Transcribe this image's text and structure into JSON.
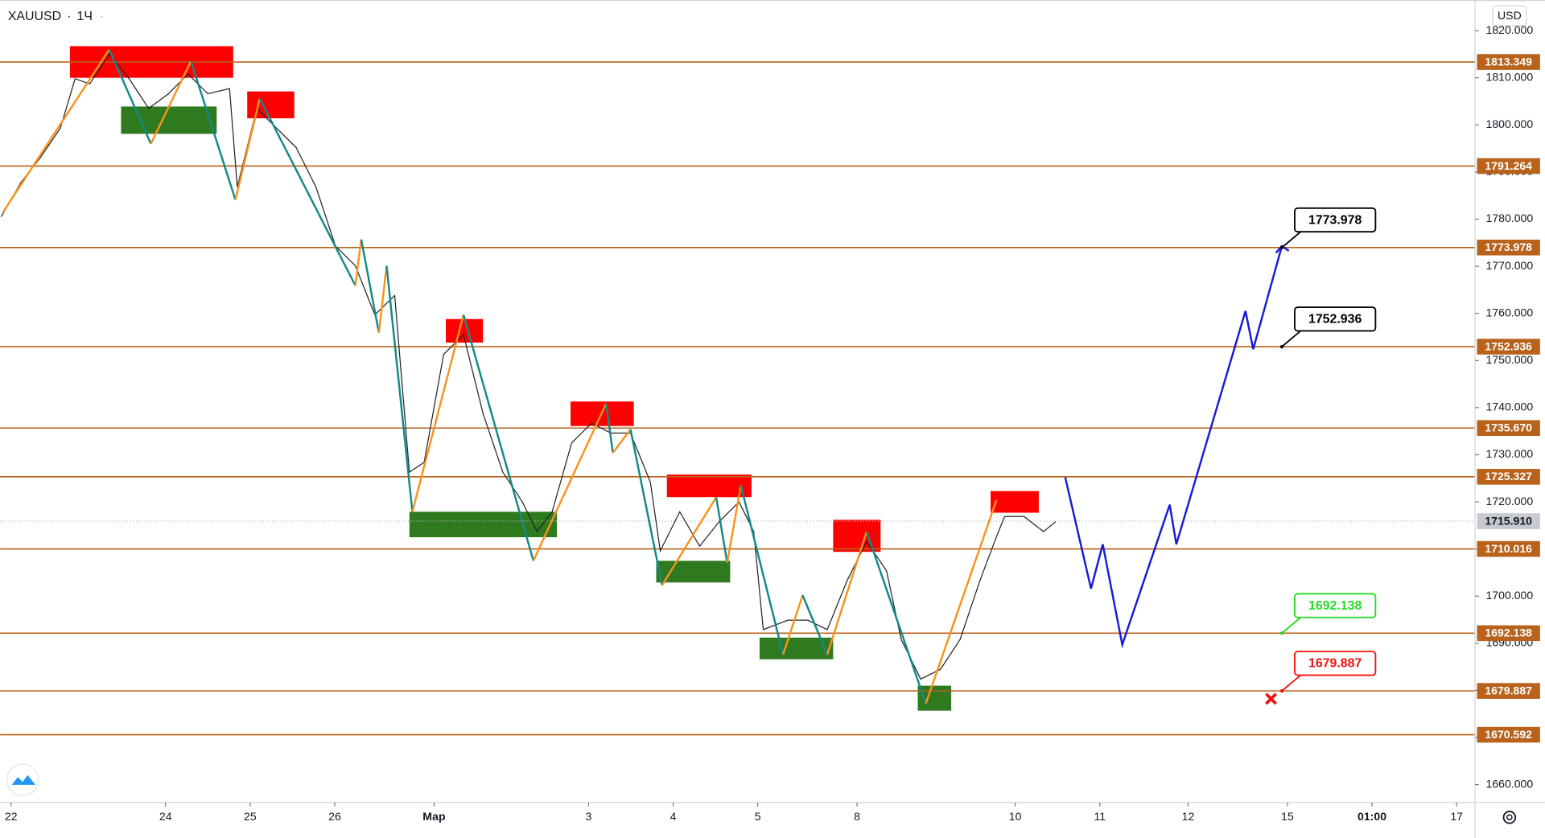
{
  "chart_data": {
    "type": "candlestick",
    "symbol": "XAUUSD",
    "interval": "1Ч",
    "currency": "USD",
    "ylim": [
      1656.2,
      1826.5
    ],
    "yticks": [
      {
        "value": 1660,
        "label": "1660.000"
      },
      {
        "value": 1670,
        "label": "1670.000"
      },
      {
        "value": 1680,
        "label": "1680.000"
      },
      {
        "value": 1690,
        "label": "1690.000"
      },
      {
        "value": 1700,
        "label": "1700.000"
      },
      {
        "value": 1710,
        "label": "1710.000"
      },
      {
        "value": 1720,
        "label": "1720.000"
      },
      {
        "value": 1730,
        "label": "1730.000"
      },
      {
        "value": 1740,
        "label": "1740.000"
      },
      {
        "value": 1750,
        "label": "1750.000"
      },
      {
        "value": 1760,
        "label": "1760.000"
      },
      {
        "value": 1770,
        "label": "1770.000"
      },
      {
        "value": 1780,
        "label": "1780.000"
      },
      {
        "value": 1790,
        "label": "1790.000"
      },
      {
        "value": 1800,
        "label": "1800.000"
      },
      {
        "value": 1810,
        "label": "1810.000"
      },
      {
        "value": 1820,
        "label": "1820.000"
      }
    ],
    "xlim": [
      -3,
      398
    ],
    "xticks": [
      {
        "value": 0,
        "label": "22"
      },
      {
        "value": 42,
        "label": "24"
      },
      {
        "value": 65,
        "label": "25"
      },
      {
        "value": 88,
        "label": "26"
      },
      {
        "value": 115,
        "label": "Мар"
      },
      {
        "value": 157,
        "label": "3"
      },
      {
        "value": 180,
        "label": "4"
      },
      {
        "value": 203,
        "label": "5"
      },
      {
        "value": 230,
        "label": "8"
      },
      {
        "value": 273,
        "label": "10"
      },
      {
        "value": 296,
        "label": "11"
      },
      {
        "value": 320,
        "label": "12"
      },
      {
        "value": 347,
        "label": "15"
      },
      {
        "value": 370,
        "label": "01:00"
      },
      {
        "value": 393,
        "label": "17"
      }
    ],
    "level_color": "#b8621b",
    "levels": [
      {
        "value": 1813.349,
        "label": "1813.349"
      },
      {
        "value": 1791.264,
        "label": "1791.264"
      },
      {
        "value": 1773.978,
        "label": "1773.978"
      },
      {
        "value": 1752.936,
        "label": "1752.936"
      },
      {
        "value": 1735.67,
        "label": "1735.670"
      },
      {
        "value": 1725.327,
        "label": "1725.327"
      },
      {
        "value": 1710.016,
        "label": "1710.016"
      },
      {
        "value": 1692.138,
        "label": "1692.138"
      },
      {
        "value": 1679.887,
        "label": "1679.887"
      },
      {
        "value": 1670.592,
        "label": "1670.592"
      }
    ],
    "last_price": {
      "value": 1715.91,
      "label": "1715.910"
    },
    "price": {
      "color": "#222222",
      "x": [
        -2.7,
        2.7,
        8.0,
        13.4,
        17.4,
        21.4,
        26.7,
        32.1,
        37.4,
        42.8,
        48.1,
        53.5,
        59.4,
        61.5,
        66.8,
        72.2,
        77.5,
        82.9,
        88.2,
        93.6,
        98.9,
        104.3,
        108.3,
        112.3,
        117.6,
        123.0,
        128.3,
        133.7,
        139.0,
        143.0,
        147.1,
        152.4,
        157.8,
        163.1,
        168.4,
        173.8,
        176.5,
        181.8,
        187.2,
        192.5,
        197.9,
        201.9,
        204.5,
        211.2,
        216.6,
        221.9,
        227.3,
        232.6,
        238.0,
        242.0,
        247.3,
        252.7,
        258.0,
        263.4,
        267.4,
        270.1,
        275.4,
        280.7,
        284.0
      ],
      "y": [
        1780.5,
        1787.8,
        1793.1,
        1799.3,
        1809.8,
        1808.7,
        1815.0,
        1809.8,
        1803.5,
        1806.6,
        1810.8,
        1806.6,
        1807.7,
        1786.8,
        1803.5,
        1799.3,
        1795.2,
        1786.8,
        1774.3,
        1770.1,
        1759.7,
        1763.8,
        1726.3,
        1728.4,
        1751.3,
        1755.5,
        1738.8,
        1726.3,
        1720.0,
        1713.7,
        1717.9,
        1732.5,
        1736.7,
        1734.6,
        1734.6,
        1724.2,
        1709.6,
        1717.9,
        1710.6,
        1715.8,
        1720.0,
        1713.7,
        1692.9,
        1694.9,
        1694.9,
        1692.9,
        1703.3,
        1711.6,
        1705.4,
        1690.8,
        1682.4,
        1684.5,
        1690.8,
        1703.3,
        1711.6,
        1716.9,
        1716.9,
        1713.7,
        1715.8
      ]
    },
    "zigzag": {
      "up_color": "#f7931e",
      "down_color": "#138a86",
      "x": [
        -2.1,
        26.7,
        38,
        48.9,
        61,
        67.6,
        93.6,
        95.2,
        100,
        102.1,
        109.1,
        123,
        142,
        161.8,
        163.6,
        168.4,
        177,
        191.7,
        194.7,
        198.4,
        209.9,
        215.2,
        221.9,
        232.6,
        248.7,
        267.9
      ],
      "y": [
        1781.6,
        1816,
        1796,
        1813.5,
        1784.1,
        1805.6,
        1765.9,
        1775.7,
        1755.9,
        1770.1,
        1717.9,
        1759.7,
        1707.5,
        1740.9,
        1730.4,
        1735.4,
        1702.3,
        1721,
        1707.1,
        1723.5,
        1687.6,
        1700.2,
        1687.6,
        1713.7,
        1677.2,
        1720.4
      ]
    },
    "projection": {
      "color": "#1a1ad6",
      "x": [
        286.6,
        293.6,
        296.8,
        302.1,
        315,
        316.8,
        335.6,
        337.7,
        345.5
      ],
      "y": [
        1725.2,
        1701.6,
        1711,
        1689.7,
        1719.4,
        1711,
        1760.5,
        1752.4,
        1774.3
      ]
    },
    "zones": [
      {
        "kind": "supply",
        "x0": 16.0,
        "x1": 60.4,
        "y0": 1810.0,
        "y1": 1816.7
      },
      {
        "kind": "supply",
        "x0": 64.2,
        "x1": 77.0,
        "y0": 1801.4,
        "y1": 1807.1
      },
      {
        "kind": "supply",
        "x0": 118.2,
        "x1": 128.3,
        "y0": 1753.8,
        "y1": 1758.8
      },
      {
        "kind": "supply",
        "x0": 152.1,
        "x1": 169.3,
        "y0": 1736.1,
        "y1": 1741.3
      },
      {
        "kind": "supply",
        "x0": 178.3,
        "x1": 201.3,
        "y0": 1721.0,
        "y1": 1725.8
      },
      {
        "kind": "supply",
        "x0": 223.5,
        "x1": 236.4,
        "y0": 1709.4,
        "y1": 1716.2
      },
      {
        "kind": "supply",
        "x0": 266.3,
        "x1": 279.4,
        "y0": 1717.7,
        "y1": 1722.3
      },
      {
        "kind": "demand",
        "x0": 29.9,
        "x1": 55.9,
        "y0": 1798.1,
        "y1": 1803.9
      },
      {
        "kind": "demand",
        "x0": 108.3,
        "x1": 148.4,
        "y0": 1712.5,
        "y1": 1717.9
      },
      {
        "kind": "demand",
        "x0": 175.4,
        "x1": 195.5,
        "y0": 1702.9,
        "y1": 1707.5
      },
      {
        "kind": "demand",
        "x0": 203.5,
        "x1": 223.5,
        "y0": 1686.6,
        "y1": 1691.2
      },
      {
        "kind": "demand",
        "x0": 246.5,
        "x1": 255.6,
        "y0": 1675.7,
        "y1": 1681.0
      }
    ],
    "zone_colors": {
      "supply": "#ff0000",
      "demand": "#2f7a1f"
    },
    "annotations": [
      {
        "x": 345.5,
        "value": 1773.978,
        "label": "1773.978",
        "color": "#000000"
      },
      {
        "x": 345.5,
        "value": 1752.936,
        "label": "1752.936",
        "color": "#000000"
      },
      {
        "x": 345.5,
        "value": 1692.138,
        "label": "1692.138",
        "color": "#22dd22"
      },
      {
        "x": 345.5,
        "value": 1679.887,
        "label": "1679.887",
        "color": "#ee1111"
      }
    ]
  }
}
